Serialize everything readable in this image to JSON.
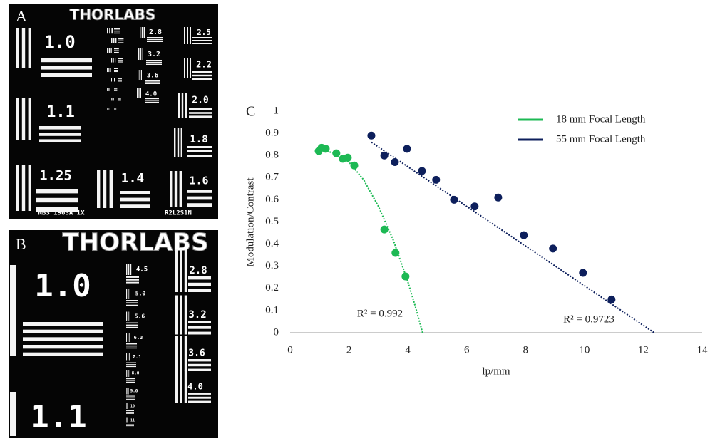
{
  "panels": [
    {
      "label": "A",
      "logo": "THORLABS",
      "labels": [
        "1.0",
        "1.1",
        "1.25",
        "1.4",
        "1.6",
        "1.8",
        "2.0",
        "2.2",
        "2.5",
        "2.8",
        "3.2",
        "3.6",
        "4.0"
      ],
      "footer": [
        "NBS 1963A 1X",
        "R2L2S1N"
      ]
    },
    {
      "label": "B",
      "logo": "THORLABS",
      "labels": [
        "1.0",
        "1.1",
        "4.5",
        "5.0",
        "5.6",
        "6.3",
        "7.1",
        "8.0",
        "9.0",
        "10",
        "11",
        "2.8",
        "3.2",
        "3.6",
        "4.0"
      ]
    }
  ],
  "chart_data": {
    "type": "scatter",
    "panel_label": "C",
    "x_label": "lp/mm",
    "y_label": "Modulation/Contrast",
    "xlim": [
      0,
      14
    ],
    "xticks": [
      0,
      2,
      4,
      6,
      8,
      10,
      12,
      14
    ],
    "ylim": [
      0,
      1
    ],
    "yticks": [
      0,
      0.1,
      0.2,
      0.3,
      0.4,
      0.5,
      0.6,
      0.7,
      0.8,
      0.9,
      1
    ],
    "grid": false,
    "legend": "upper right",
    "series": [
      {
        "name": "18 mm Focal Length",
        "color": "#1db954",
        "x": [
          0.97,
          1.07,
          1.21,
          1.57,
          1.79,
          1.96,
          2.18,
          3.2,
          3.58,
          3.92
        ],
        "values": [
          0.82,
          0.835,
          0.83,
          0.81,
          0.785,
          0.79,
          0.755,
          0.466,
          0.36,
          0.254
        ]
      },
      {
        "name": "55 mm Focal Length",
        "color": "#0d1f5c",
        "x": [
          2.76,
          3.2,
          3.56,
          3.97,
          4.48,
          4.96,
          5.57,
          6.27,
          7.07,
          7.94,
          8.93,
          9.95,
          10.92
        ],
        "values": [
          0.89,
          0.8,
          0.77,
          0.83,
          0.73,
          0.69,
          0.6,
          0.57,
          0.61,
          0.44,
          0.38,
          0.27,
          0.15
        ]
      }
    ],
    "trendlines": [
      {
        "color": "#1db954",
        "x": [
          0.97,
          1.5,
          2,
          2.5,
          3,
          3.5,
          4,
          4.25,
          4.5
        ],
        "values": [
          0.83,
          0.81,
          0.77,
          0.69,
          0.57,
          0.42,
          0.23,
          0.12,
          0
        ]
      },
      {
        "color": "#0d1f5c",
        "x": [
          2.76,
          12.37
        ],
        "values": [
          0.86,
          0
        ]
      }
    ],
    "annotations": [
      "R² = 0.992",
      "R² = 0.9723"
    ]
  }
}
